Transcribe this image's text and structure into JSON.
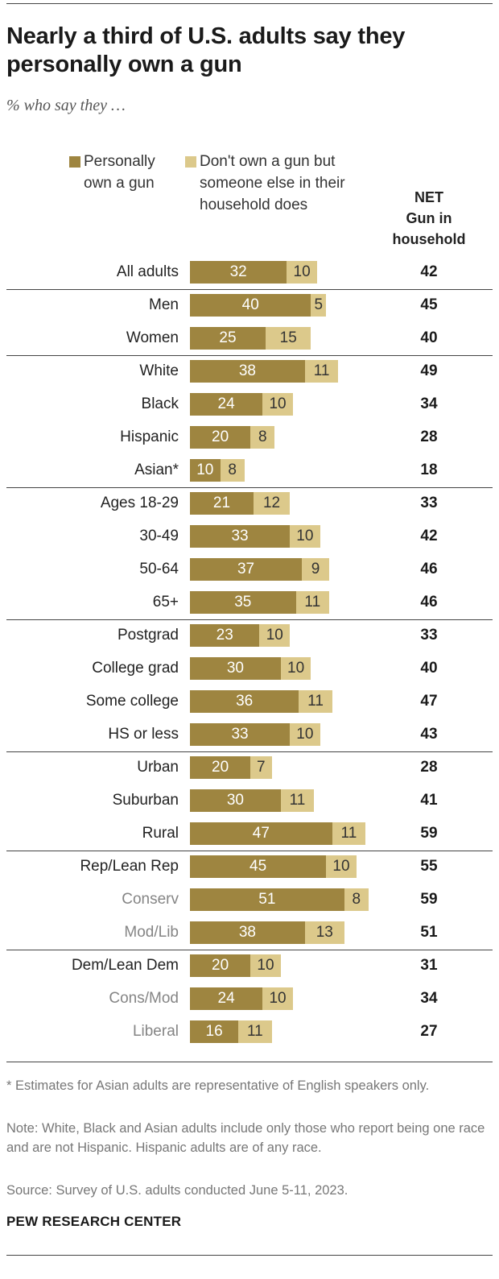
{
  "title": "Nearly a third of U.S. adults say they personally own a gun",
  "subtitle": "% who say they …",
  "legend": {
    "own": "Personally\nown a gun",
    "household": "Don't own a gun but\nsomeone else in their\nhousehold does"
  },
  "net_header": "NET\nGun in\nhousehold",
  "colors": {
    "own": "#9e8540",
    "household": "#dcc98b",
    "label_primary": "#222222",
    "label_secondary": "#858585"
  },
  "chart_data": {
    "type": "bar",
    "stacked": true,
    "orientation": "horizontal",
    "title": "Nearly a third of U.S. adults say they personally own a gun",
    "subtitle": "% who say they …",
    "series": [
      {
        "name": "Personally own a gun",
        "key": "own"
      },
      {
        "name": "Don't own a gun but someone else in their household does",
        "key": "household"
      }
    ],
    "groups": [
      {
        "rows": [
          {
            "label": "All adults",
            "own": 32,
            "household": 10,
            "net": 42
          }
        ]
      },
      {
        "rows": [
          {
            "label": "Men",
            "own": 40,
            "household": 5,
            "net": 45
          },
          {
            "label": "Women",
            "own": 25,
            "household": 15,
            "net": 40
          }
        ]
      },
      {
        "rows": [
          {
            "label": "White",
            "own": 38,
            "household": 11,
            "net": 49
          },
          {
            "label": "Black",
            "own": 24,
            "household": 10,
            "net": 34
          },
          {
            "label": "Hispanic",
            "own": 20,
            "household": 8,
            "net": 28
          },
          {
            "label": "Asian*",
            "own": 10,
            "household": 8,
            "net": 18
          }
        ]
      },
      {
        "rows": [
          {
            "label": "Ages 18-29",
            "own": 21,
            "household": 12,
            "net": 33
          },
          {
            "label": "30-49",
            "own": 33,
            "household": 10,
            "net": 42
          },
          {
            "label": "50-64",
            "own": 37,
            "household": 9,
            "net": 46
          },
          {
            "label": "65+",
            "own": 35,
            "household": 11,
            "net": 46
          }
        ]
      },
      {
        "rows": [
          {
            "label": "Postgrad",
            "own": 23,
            "household": 10,
            "net": 33
          },
          {
            "label": "College grad",
            "own": 30,
            "household": 10,
            "net": 40
          },
          {
            "label": "Some college",
            "own": 36,
            "household": 11,
            "net": 47
          },
          {
            "label": "HS or less",
            "own": 33,
            "household": 10,
            "net": 43
          }
        ]
      },
      {
        "rows": [
          {
            "label": "Urban",
            "own": 20,
            "household": 7,
            "net": 28
          },
          {
            "label": "Suburban",
            "own": 30,
            "household": 11,
            "net": 41
          },
          {
            "label": "Rural",
            "own": 47,
            "household": 11,
            "net": 59
          }
        ]
      },
      {
        "rows": [
          {
            "label": "Rep/Lean Rep",
            "own": 45,
            "household": 10,
            "net": 55
          },
          {
            "label": "Conserv",
            "own": 51,
            "household": 8,
            "net": 59,
            "sub": true
          },
          {
            "label": "Mod/Lib",
            "own": 38,
            "household": 13,
            "net": 51,
            "sub": true
          }
        ]
      },
      {
        "rows": [
          {
            "label": "Dem/Lean Dem",
            "own": 20,
            "household": 10,
            "net": 31
          },
          {
            "label": "Cons/Mod",
            "own": 24,
            "household": 10,
            "net": 34,
            "sub": true
          },
          {
            "label": "Liberal",
            "own": 16,
            "household": 11,
            "net": 27,
            "sub": true
          }
        ]
      }
    ]
  },
  "footnotes": {
    "asterisk": "* Estimates for Asian adults are representative of English speakers only.",
    "note": "Note: White, Black and Asian adults include only those who report being one race and are not Hispanic. Hispanic adults are of any race.",
    "source": "Source: Survey of U.S. adults conducted June 5-11, 2023."
  },
  "brand": "PEW RESEARCH CENTER"
}
